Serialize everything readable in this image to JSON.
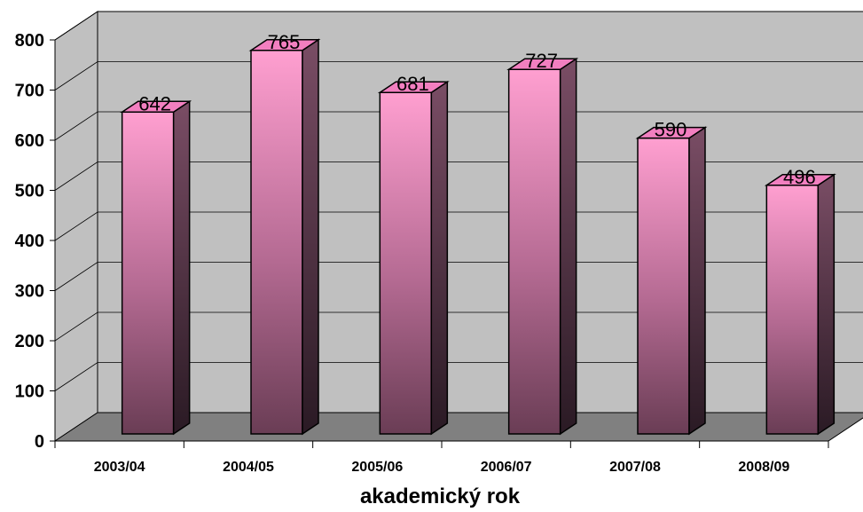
{
  "chart_data": {
    "type": "bar",
    "categories": [
      "2003/04",
      "2004/05",
      "2005/06",
      "2006/07",
      "2007/08",
      "2008/09"
    ],
    "values": [
      642,
      765,
      681,
      727,
      590,
      496
    ],
    "title": "",
    "xlabel": "akademický rok",
    "ylabel": "",
    "ylim": [
      0,
      800
    ],
    "yticks": [
      0,
      100,
      200,
      300,
      400,
      500,
      600,
      700,
      800
    ],
    "grid": true,
    "legend": "none",
    "data_labels": true,
    "style": "3d-column",
    "colors": {
      "bar_light": "#ff9fd0",
      "bar_dark": "#6a3d55",
      "bar_side": "#7a4d65",
      "bar_top": "#f27fc0",
      "back_wall": "#c0c0c0",
      "floor": "#808080",
      "grid": "#000000"
    }
  }
}
